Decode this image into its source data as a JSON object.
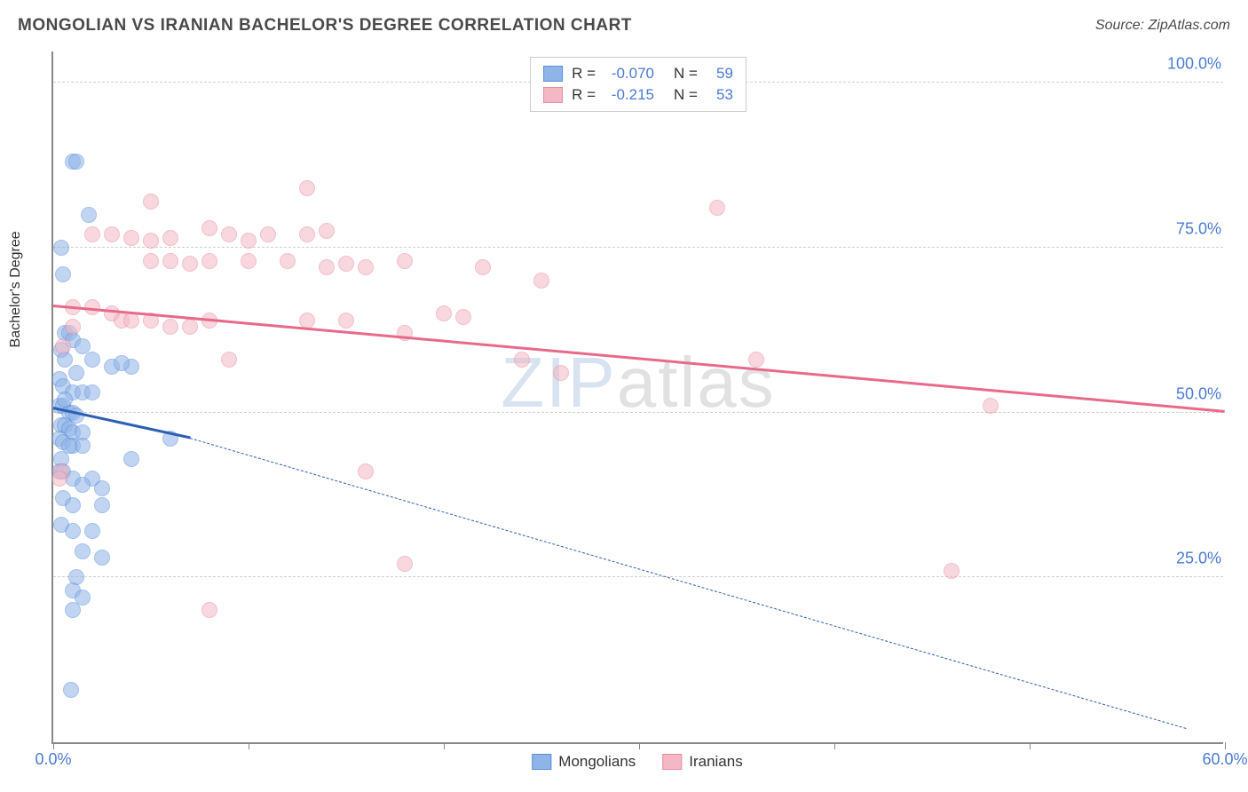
{
  "title": "MONGOLIAN VS IRANIAN BACHELOR'S DEGREE CORRELATION CHART",
  "source": "Source: ZipAtlas.com",
  "watermark": {
    "z": "ZIP",
    "rest": "atlas"
  },
  "chart": {
    "type": "scatter",
    "background": "#ffffff",
    "axis_color": "#888888",
    "grid_color": "#d0d0d0",
    "tick_label_color": "#4a7bd4",
    "tick_fontsize": 18,
    "yaxis_title": "Bachelor's Degree",
    "yaxis_title_fontsize": 16,
    "xlim": [
      0,
      60
    ],
    "ylim": [
      0,
      105
    ],
    "yticks": [
      25,
      50,
      75,
      100
    ],
    "ytick_labels": [
      "25.0%",
      "50.0%",
      "75.0%",
      "100.0%"
    ],
    "xticks": [
      0,
      10,
      20,
      30,
      40,
      50,
      60
    ],
    "xtick_labels_shown": {
      "0": "0.0%",
      "60": "60.0%"
    },
    "marker_radius": 9,
    "marker_opacity": 0.55,
    "series": [
      {
        "name": "Mongolians",
        "color": "#8fb4e8",
        "stroke": "#5a8fd6",
        "R": "-0.070",
        "N": "59",
        "points": [
          [
            1.0,
            88
          ],
          [
            1.2,
            88
          ],
          [
            1.8,
            80
          ],
          [
            0.4,
            75
          ],
          [
            0.5,
            71
          ],
          [
            0.6,
            62
          ],
          [
            0.8,
            62
          ],
          [
            1.0,
            61
          ],
          [
            1.5,
            60
          ],
          [
            0.4,
            59.5
          ],
          [
            0.6,
            58
          ],
          [
            2.0,
            58
          ],
          [
            3.0,
            57
          ],
          [
            4.0,
            57
          ],
          [
            3.5,
            57.5
          ],
          [
            0.3,
            55
          ],
          [
            0.5,
            54
          ],
          [
            1.0,
            53
          ],
          [
            1.5,
            53
          ],
          [
            2.0,
            53
          ],
          [
            0.3,
            51
          ],
          [
            0.5,
            51
          ],
          [
            0.8,
            50
          ],
          [
            1.0,
            50
          ],
          [
            1.2,
            49.5
          ],
          [
            0.4,
            48
          ],
          [
            0.6,
            48
          ],
          [
            0.8,
            47.5
          ],
          [
            1.0,
            47
          ],
          [
            1.5,
            47
          ],
          [
            0.3,
            46
          ],
          [
            0.5,
            45.5
          ],
          [
            1.0,
            45
          ],
          [
            1.5,
            45
          ],
          [
            6.0,
            46
          ],
          [
            0.4,
            43
          ],
          [
            4.0,
            43
          ],
          [
            0.3,
            41
          ],
          [
            0.5,
            41
          ],
          [
            1.0,
            40
          ],
          [
            2.0,
            40
          ],
          [
            1.5,
            39
          ],
          [
            2.5,
            38.5
          ],
          [
            0.5,
            37
          ],
          [
            1.0,
            36
          ],
          [
            2.5,
            36
          ],
          [
            0.4,
            33
          ],
          [
            1.0,
            32
          ],
          [
            2.0,
            32
          ],
          [
            1.5,
            29
          ],
          [
            2.5,
            28
          ],
          [
            1.2,
            25
          ],
          [
            1.0,
            23
          ],
          [
            1.5,
            22
          ],
          [
            1.0,
            20
          ],
          [
            0.8,
            45
          ],
          [
            0.6,
            52
          ],
          [
            1.2,
            56
          ],
          [
            0.9,
            8
          ]
        ],
        "trend": {
          "color": "#2c5fb3",
          "width": 3,
          "solid_from": [
            0,
            50.5
          ],
          "solid_to": [
            7,
            46
          ],
          "dash_from": [
            7,
            46
          ],
          "dash_to": [
            58,
            2
          ]
        }
      },
      {
        "name": "Iranians",
        "color": "#f4b8c4",
        "stroke": "#e88ca0",
        "R": "-0.215",
        "N": "53",
        "points": [
          [
            5,
            82
          ],
          [
            13,
            84
          ],
          [
            34,
            81
          ],
          [
            2,
            77
          ],
          [
            3,
            77
          ],
          [
            4,
            76.5
          ],
          [
            5,
            76
          ],
          [
            6,
            76.5
          ],
          [
            8,
            78
          ],
          [
            9,
            77
          ],
          [
            10,
            76
          ],
          [
            11,
            77
          ],
          [
            13,
            77
          ],
          [
            14,
            77.5
          ],
          [
            5,
            73
          ],
          [
            6,
            73
          ],
          [
            7,
            72.5
          ],
          [
            8,
            73
          ],
          [
            10,
            73
          ],
          [
            12,
            73
          ],
          [
            14,
            72
          ],
          [
            15,
            72.5
          ],
          [
            16,
            72
          ],
          [
            18,
            73
          ],
          [
            22,
            72
          ],
          [
            1,
            66
          ],
          [
            2,
            66
          ],
          [
            3,
            65
          ],
          [
            3.5,
            64
          ],
          [
            4,
            64
          ],
          [
            5,
            64
          ],
          [
            6,
            63
          ],
          [
            7,
            63
          ],
          [
            8,
            64
          ],
          [
            13,
            64
          ],
          [
            15,
            64
          ],
          [
            20,
            65
          ],
          [
            21,
            64.5
          ],
          [
            18,
            62
          ],
          [
            9,
            58
          ],
          [
            25,
            70
          ],
          [
            24,
            58
          ],
          [
            26,
            56
          ],
          [
            36,
            58
          ],
          [
            48,
            51
          ],
          [
            0.5,
            60
          ],
          [
            0.4,
            41
          ],
          [
            0.3,
            40
          ],
          [
            16,
            41
          ],
          [
            8,
            20
          ],
          [
            18,
            27
          ],
          [
            46,
            26
          ],
          [
            1.0,
            63
          ]
        ],
        "trend": {
          "color": "#e86a8a",
          "width": 3,
          "solid_from": [
            0,
            66
          ],
          "solid_to": [
            60,
            50
          ]
        }
      }
    ],
    "legend_bottom": [
      {
        "label": "Mongolians",
        "fill": "#8fb4e8",
        "stroke": "#5a8fd6"
      },
      {
        "label": "Iranians",
        "fill": "#f4b8c4",
        "stroke": "#e88ca0"
      }
    ]
  }
}
